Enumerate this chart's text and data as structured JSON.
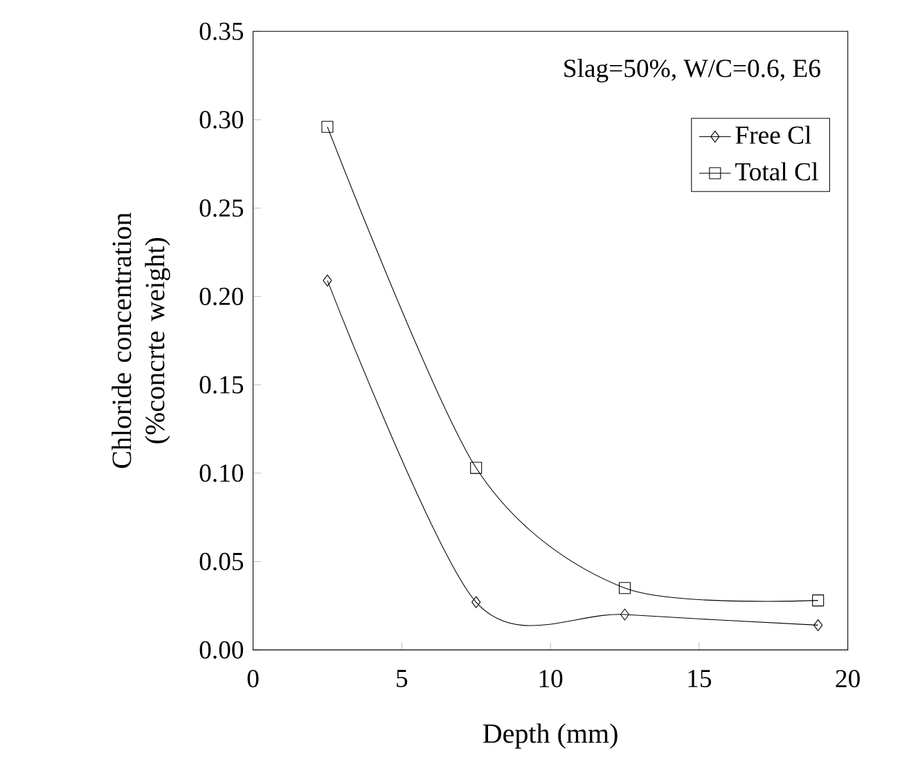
{
  "chart_data": {
    "type": "line",
    "xlabel": "Depth (mm)",
    "ylabel": "Chloride concentration (%concrte weight)",
    "annotations": [
      "Slag=50%, W/C=0.6, E6"
    ],
    "xlim": [
      0,
      20
    ],
    "xticks": [
      0,
      5,
      10,
      15,
      20
    ],
    "ylim": [
      0,
      0.35
    ],
    "yticks": [
      {
        "value": 0,
        "label": "0.00"
      },
      {
        "value": 0.05,
        "label": "0.05"
      },
      {
        "value": 0.1,
        "label": "0.10"
      },
      {
        "value": 0.15,
        "label": "0.15"
      },
      {
        "value": 0.2,
        "label": "0.20"
      },
      {
        "value": 0.25,
        "label": "0.25"
      },
      {
        "value": 0.3,
        "label": "0.30"
      },
      {
        "value": 0.35,
        "label": "0.35"
      }
    ],
    "legend": "top right",
    "grid": false,
    "line_style": "solid",
    "series": [
      {
        "name": "Free Cl",
        "color": "#000000",
        "marker": "diamond",
        "x": [
          2.5,
          7.5,
          12.5,
          19
        ],
        "values": [
          0.209,
          0.027,
          0.02,
          0.014
        ]
      },
      {
        "name": "Total Cl",
        "color": "#000000",
        "marker": "square",
        "x": [
          2.5,
          7.5,
          12.5,
          19
        ],
        "values": [
          0.296,
          0.103,
          0.035,
          0.028
        ]
      }
    ]
  }
}
